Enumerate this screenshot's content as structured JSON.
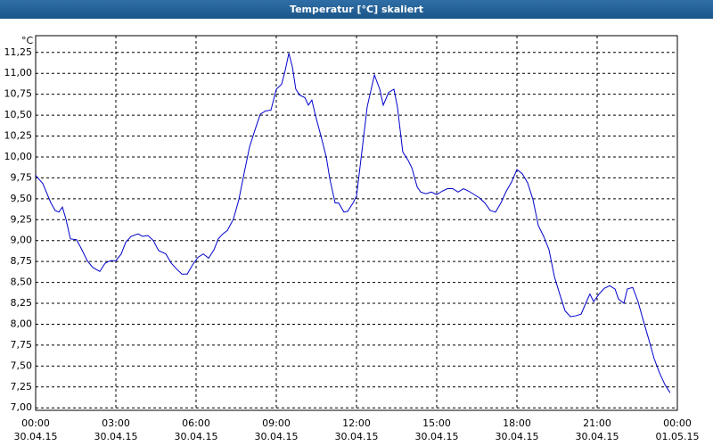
{
  "chart_data": {
    "type": "line",
    "title": "Temperatur [°C] skaliert",
    "y_unit": "°C",
    "xlim": [
      0,
      24
    ],
    "ylim": [
      6.97,
      11.45
    ],
    "grid": true,
    "color": "#0000cc",
    "xticks": [
      {
        "value": 0,
        "label": "00:00",
        "date": "30.04.15"
      },
      {
        "value": 3,
        "label": "03:00",
        "date": "30.04.15"
      },
      {
        "value": 6,
        "label": "06:00",
        "date": "30.04.15"
      },
      {
        "value": 9,
        "label": "09:00",
        "date": "30.04.15"
      },
      {
        "value": 12,
        "label": "12:00",
        "date": "30.04.15"
      },
      {
        "value": 15,
        "label": "15:00",
        "date": "30.04.15"
      },
      {
        "value": 18,
        "label": "18:00",
        "date": "30.04.15"
      },
      {
        "value": 21,
        "label": "21:00",
        "date": "30.04.15"
      },
      {
        "value": 24,
        "label": "00:00",
        "date": "01.05.15"
      }
    ],
    "yticks": [
      {
        "value": 7,
        "label": "7,00"
      },
      {
        "value": 7.25,
        "label": "7,25"
      },
      {
        "value": 7.5,
        "label": "7,50"
      },
      {
        "value": 7.75,
        "label": "7,75"
      },
      {
        "value": 8,
        "label": "8,00"
      },
      {
        "value": 8.25,
        "label": "8,25"
      },
      {
        "value": 8.5,
        "label": "8,50"
      },
      {
        "value": 8.75,
        "label": "8,75"
      },
      {
        "value": 9,
        "label": "9,00"
      },
      {
        "value": 9.25,
        "label": "9,25"
      },
      {
        "value": 9.5,
        "label": "9,50"
      },
      {
        "value": 9.75,
        "label": "9,75"
      },
      {
        "value": 10,
        "label": "10,00"
      },
      {
        "value": 10.25,
        "label": "10,25"
      },
      {
        "value": 10.5,
        "label": "10,50"
      },
      {
        "value": 10.75,
        "label": "10,75"
      },
      {
        "value": 11,
        "label": "11,00"
      },
      {
        "value": 11.25,
        "label": "11,25"
      }
    ],
    "x": [
      0,
      0.27,
      0.4,
      0.57,
      0.73,
      0.87,
      1,
      1.13,
      1.3,
      1.53,
      1.73,
      1.93,
      2.13,
      2.4,
      2.6,
      2.8,
      3,
      3.2,
      3.37,
      3.57,
      3.83,
      4,
      4.2,
      4.4,
      4.6,
      4.87,
      5.07,
      5.27,
      5.47,
      5.67,
      5.87,
      6.07,
      6.27,
      6.47,
      6.67,
      6.83,
      7,
      7.17,
      7.4,
      7.6,
      7.8,
      8,
      8.2,
      8.4,
      8.6,
      8.8,
      9,
      9.2,
      9.33,
      9.47,
      9.6,
      9.73,
      9.87,
      10.07,
      10.2,
      10.33,
      10.47,
      10.67,
      10.87,
      11,
      11.2,
      11.33,
      11.53,
      11.67,
      11.87,
      12,
      12.2,
      12.4,
      12.67,
      12.87,
      13,
      13.2,
      13.4,
      13.53,
      13.73,
      13.93,
      14.07,
      14.27,
      14.4,
      14.6,
      14.8,
      15,
      15.2,
      15.4,
      15.6,
      15.8,
      16,
      16.2,
      16.4,
      16.6,
      16.8,
      17,
      17.2,
      17.4,
      17.6,
      17.8,
      18,
      18.2,
      18.4,
      18.6,
      18.8,
      19,
      19.2,
      19.4,
      19.6,
      19.8,
      20,
      20.2,
      20.4,
      20.6,
      20.73,
      20.87,
      21.07,
      21.27,
      21.47,
      21.67,
      21.8,
      22,
      22.13,
      22.33,
      22.53,
      22.73,
      22.93,
      23.13,
      23.33,
      23.53,
      23.73
    ],
    "values": [
      9.78,
      9.68,
      9.58,
      9.45,
      9.36,
      9.34,
      9.4,
      9.26,
      9.02,
      9.01,
      8.89,
      8.76,
      8.68,
      8.63,
      8.73,
      8.76,
      8.76,
      8.84,
      8.98,
      9.05,
      9.08,
      9.05,
      9.06,
      9.0,
      8.88,
      8.84,
      8.73,
      8.66,
      8.6,
      8.6,
      8.71,
      8.8,
      8.84,
      8.79,
      8.89,
      9.02,
      9.08,
      9.12,
      9.26,
      9.49,
      9.81,
      10.12,
      10.32,
      10.51,
      10.55,
      10.56,
      10.81,
      10.87,
      11.03,
      11.24,
      11.08,
      10.81,
      10.74,
      10.71,
      10.62,
      10.68,
      10.49,
      10.25,
      10.0,
      9.74,
      9.45,
      9.45,
      9.34,
      9.35,
      9.45,
      9.53,
      10.06,
      10.6,
      10.98,
      10.81,
      10.62,
      10.77,
      10.81,
      10.6,
      10.06,
      9.96,
      9.87,
      9.64,
      9.58,
      9.56,
      9.58,
      9.55,
      9.59,
      9.62,
      9.62,
      9.58,
      9.62,
      9.59,
      9.55,
      9.51,
      9.45,
      9.36,
      9.34,
      9.45,
      9.59,
      9.7,
      9.85,
      9.8,
      9.69,
      9.49,
      9.18,
      9.05,
      8.89,
      8.57,
      8.36,
      8.16,
      8.09,
      8.1,
      8.12,
      8.27,
      8.36,
      8.27,
      8.36,
      8.43,
      8.46,
      8.42,
      8.3,
      8.25,
      8.42,
      8.44,
      8.27,
      8.04,
      7.82,
      7.59,
      7.42,
      7.28,
      7.18
    ]
  }
}
